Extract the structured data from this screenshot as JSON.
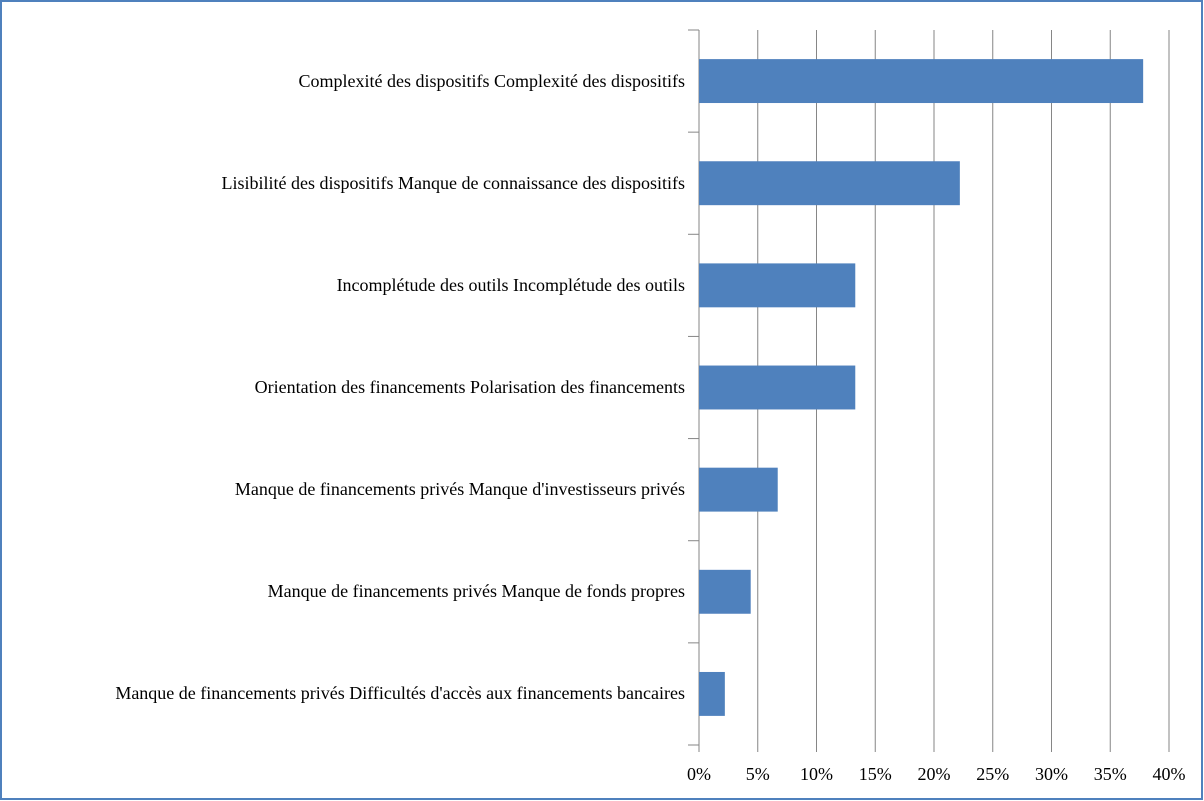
{
  "chart_data": {
    "type": "barh",
    "categories": [
      "Complexité des dispositifs Complexité des dispositifs",
      "Lisibilité des dispositifs Manque de connaissance des dispositifs",
      "Incomplétude des outils Incomplétude des outils",
      "Orientation des financements Polarisation des financements",
      "Manque de financements privés Manque d'investisseurs privés",
      "Manque de financements privés Manque de fonds propres",
      "Manque de financements privés Difficultés d'accès aux financements bancaires"
    ],
    "values": [
      37.8,
      22.2,
      13.3,
      13.3,
      6.7,
      4.4,
      2.2
    ],
    "color": "#4f81bd",
    "xlim": [
      0,
      40
    ],
    "xticks": [
      {
        "value": 0,
        "label": "0%"
      },
      {
        "value": 5,
        "label": "5%"
      },
      {
        "value": 10,
        "label": "10%"
      },
      {
        "value": 15,
        "label": "15%"
      },
      {
        "value": 20,
        "label": "20%"
      },
      {
        "value": 25,
        "label": "25%"
      },
      {
        "value": 30,
        "label": "30%"
      },
      {
        "value": 35,
        "label": "35%"
      },
      {
        "value": 40,
        "label": "40%"
      }
    ],
    "grid": true
  }
}
